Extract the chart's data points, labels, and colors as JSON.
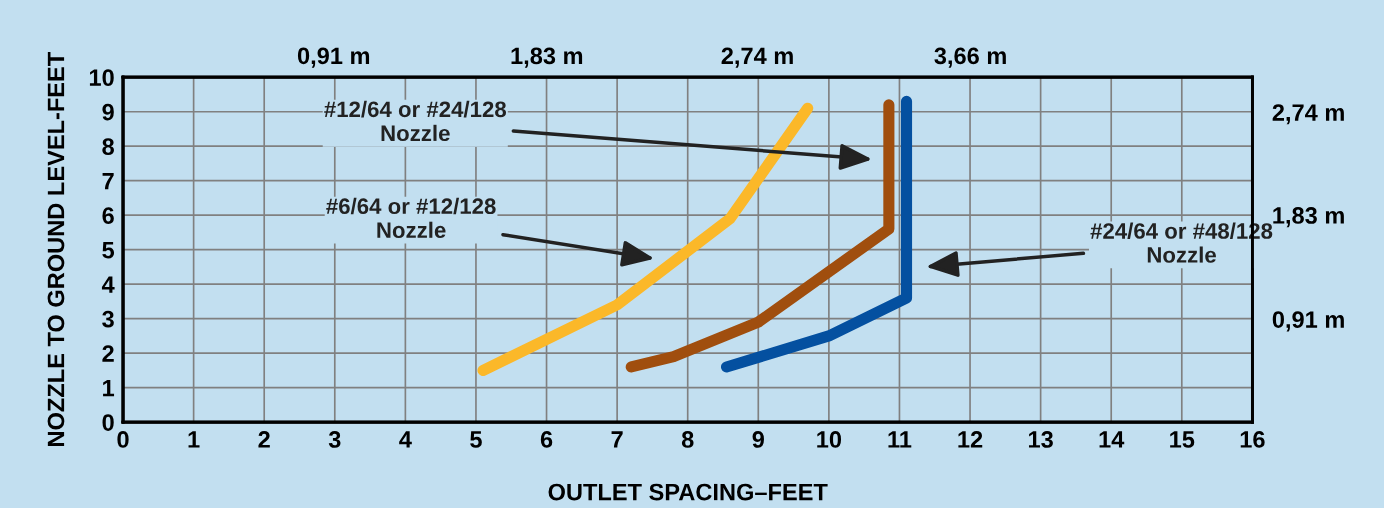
{
  "chart_data": {
    "type": "line",
    "xlabel": "OUTLET SPACING–FEET",
    "ylabel": "NOZZLE TO GROUND LEVEL-FEET",
    "xlim": [
      0,
      16
    ],
    "xticks": [
      0,
      1,
      2,
      3,
      4,
      5,
      6,
      7,
      8,
      9,
      10,
      11,
      12,
      13,
      14,
      15,
      16
    ],
    "ylim": [
      0,
      10
    ],
    "yticks": [
      0,
      1,
      2,
      3,
      4,
      5,
      6,
      7,
      8,
      9,
      10
    ],
    "x2lim": [
      0,
      4.877
    ],
    "x2ticks": [
      {
        "value": 0.91,
        "label": "0,91 m"
      },
      {
        "value": 1.83,
        "label": "1,83 m"
      },
      {
        "value": 2.74,
        "label": "2,74 m"
      },
      {
        "value": 3.66,
        "label": "3,66 m"
      }
    ],
    "y2lim": [
      0,
      3.048
    ],
    "y2ticks": [
      {
        "value": 0.91,
        "label": "0,91 m"
      },
      {
        "value": 1.83,
        "label": "1,83 m"
      },
      {
        "value": 2.74,
        "label": "2,74 m"
      }
    ],
    "grid": true,
    "marker": "none",
    "line_style": "solid",
    "series": [
      {
        "color": "#fbb829",
        "x": [
          5.1,
          7.0,
          8.6,
          9.7
        ],
        "values": [
          1.5,
          3.4,
          5.9,
          9.1
        ]
      },
      {
        "color": "#a04e0e",
        "x": [
          7.2,
          7.8,
          9.0,
          10.85,
          10.85
        ],
        "values": [
          1.6,
          1.9,
          2.9,
          5.6,
          9.2
        ]
      },
      {
        "color": "#0450a0",
        "x": [
          8.55,
          10.0,
          11.1,
          11.1
        ],
        "values": [
          1.6,
          2.5,
          3.6,
          9.3
        ]
      }
    ],
    "annotations": [
      "#6/64 or #12/128\nNozzle",
      "#12/64 or #24/128\nNozzle",
      "#24/64 or #48/128\nNozzle"
    ]
  }
}
